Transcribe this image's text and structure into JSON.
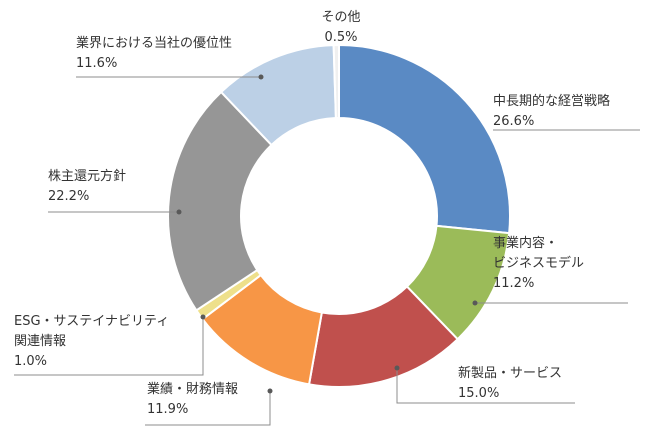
{
  "chart_data": {
    "type": "pie",
    "variant": "donut",
    "title": "",
    "unit": "%",
    "start_angle_deg": 0,
    "direction": "clockwise",
    "slices": [
      {
        "label": "中長期的な経営戦略",
        "value": 26.6,
        "value_label": "26.6%",
        "color": "#5a8ac4"
      },
      {
        "label": "事業内容・ビジネスモデル",
        "value": 11.2,
        "value_label": "11.2%",
        "color": "#9bbb59"
      },
      {
        "label": "新製品・サービス",
        "value": 15.0,
        "value_label": "15.0%",
        "color": "#c0504d"
      },
      {
        "label": "業績・財務情報",
        "value": 11.9,
        "value_label": "11.9%",
        "color": "#f79646"
      },
      {
        "label": "ESG・サステイナビリティ関連情報",
        "value": 1.0,
        "value_label": "1.0%",
        "color": "#eee08b"
      },
      {
        "label": "株主還元方針",
        "value": 22.2,
        "value_label": "22.2%",
        "color": "#969696"
      },
      {
        "label": "業界における当社の優位性",
        "value": 11.6,
        "value_label": "11.6%",
        "color": "#bcd0e6"
      },
      {
        "label": "その他",
        "value": 0.5,
        "value_label": "0.5%",
        "color": "#f0f0f0"
      }
    ]
  }
}
